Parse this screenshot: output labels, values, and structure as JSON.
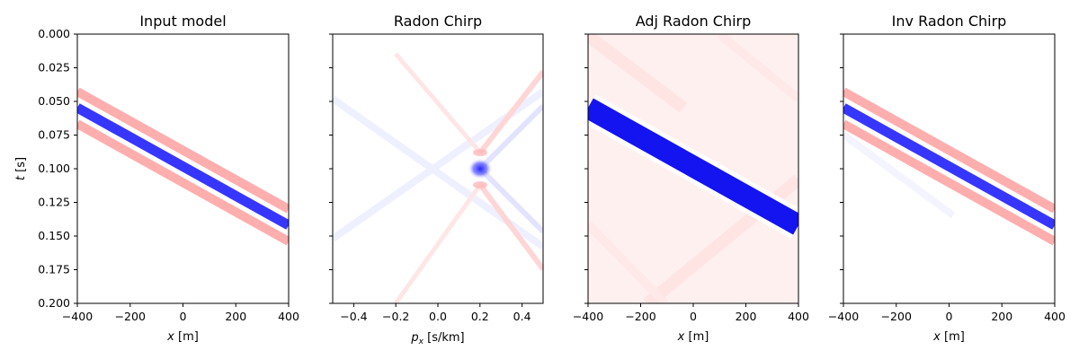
{
  "figure": {
    "panels": [
      {
        "title": "Input model",
        "xlabel": "x [m]",
        "xlabel_var": "x",
        "xlabel_unit": " [m]",
        "ylabel": "t [s]"
      },
      {
        "title": "Radon Chirp",
        "xlabel": "p_x [s/km]",
        "xlabel_var": "p",
        "xlabel_sub": "x",
        "xlabel_unit": " [s/km]",
        "ylabel": ""
      },
      {
        "title": "Adj Radon Chirp",
        "xlabel": "x [m]",
        "xlabel_var": "x",
        "xlabel_unit": " [m]",
        "ylabel": ""
      },
      {
        "title": "Inv Radon Chirp",
        "xlabel": "x [m]",
        "xlabel_var": "x",
        "xlabel_unit": " [m]",
        "ylabel": ""
      }
    ],
    "ylabel_var": "t",
    "ylabel_unit": " [s]"
  },
  "chart_data": [
    {
      "type": "heatmap",
      "title": "Input model",
      "xlabel": "x [m]",
      "ylabel": "t [s]",
      "xlim": [
        -400,
        400
      ],
      "ylim": [
        0.2,
        0.0
      ],
      "x_ticks": [
        "−400",
        "−200",
        "0",
        "200",
        "400"
      ],
      "x_tick_values": [
        -400,
        -200,
        0,
        200,
        400
      ],
      "y_ticks": [
        "0.000",
        "0.025",
        "0.050",
        "0.075",
        "0.100",
        "0.125",
        "0.150",
        "0.175",
        "0.200"
      ],
      "y_tick_values": [
        0.0,
        0.025,
        0.05,
        0.075,
        0.1,
        0.125,
        0.15,
        0.175,
        0.2
      ],
      "colormap": "bwr",
      "event": {
        "kind": "linear",
        "t0": 0.1,
        "slope": 0.000113,
        "amplitude": 1.0
      }
    },
    {
      "type": "heatmap",
      "title": "Radon Chirp",
      "xlabel": "p_x [s/km]",
      "ylabel": "",
      "xlim": [
        -0.5,
        0.5
      ],
      "ylim": [
        0.2,
        0.0
      ],
      "x_ticks": [
        "−0.4",
        "−0.2",
        "0.0",
        "0.2",
        "0.4"
      ],
      "x_tick_values": [
        -0.4,
        -0.2,
        0.0,
        0.2,
        0.4
      ],
      "colormap": "bwr",
      "event": {
        "kind": "point",
        "p0": 0.21,
        "t0": 0.1,
        "amplitude": 1.0
      }
    },
    {
      "type": "heatmap",
      "title": "Adj Radon Chirp",
      "xlabel": "x [m]",
      "ylabel": "",
      "xlim": [
        -400,
        400
      ],
      "ylim": [
        0.2,
        0.0
      ],
      "x_ticks": [
        "−400",
        "−200",
        "0",
        "200",
        "400"
      ],
      "x_tick_values": [
        -400,
        -200,
        0,
        200,
        400
      ],
      "colormap": "bwr",
      "event": {
        "kind": "linear",
        "t0": 0.1,
        "slope": 0.000113,
        "amplitude": 1.0
      }
    },
    {
      "type": "heatmap",
      "title": "Inv Radon Chirp",
      "xlabel": "x [m]",
      "ylabel": "",
      "xlim": [
        -400,
        400
      ],
      "ylim": [
        0.2,
        0.0
      ],
      "x_ticks": [
        "−400",
        "−200",
        "0",
        "200",
        "400"
      ],
      "x_tick_values": [
        -400,
        -200,
        0,
        200,
        400
      ],
      "colormap": "bwr",
      "event": {
        "kind": "linear",
        "t0": 0.1,
        "slope": 0.000113,
        "amplitude": 1.0
      }
    }
  ],
  "colors": {
    "negative": "#0000ff",
    "positive": "#ff0000",
    "zero": "#ffffff"
  }
}
